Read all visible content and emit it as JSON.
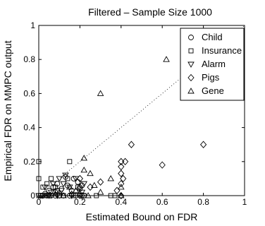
{
  "chart_data": {
    "type": "scatter",
    "title": "Filtered – Sample Size 1000",
    "xlabel": "Estimated Bound on FDR",
    "ylabel": "Empirical FDR on MMPC output",
    "xlim": [
      0,
      1
    ],
    "ylim": [
      0,
      1
    ],
    "xticks": [
      "0",
      "0.2",
      "0.4",
      "0.6",
      "0.8",
      "1"
    ],
    "yticks": [
      "0",
      "0.2",
      "0.4",
      "0.6",
      "0.8",
      "1"
    ],
    "grid": false,
    "legend_position": "top-right",
    "reference_line": {
      "style": "dotted",
      "x": [
        0,
        1
      ],
      "y": [
        0,
        1
      ]
    },
    "series": [
      {
        "name": "Child",
        "marker": "circle",
        "points": [
          [
            0.01,
            0.0
          ],
          [
            0.02,
            0.0
          ],
          [
            0.04,
            0.0
          ],
          [
            0.06,
            0.0
          ],
          [
            0.08,
            0.0
          ],
          [
            0.1,
            0.0
          ],
          [
            0.12,
            0.0
          ],
          [
            0.15,
            0.0
          ],
          [
            0.18,
            0.0
          ],
          [
            0.2,
            0.0
          ],
          [
            0.22,
            0.0
          ],
          [
            0.03,
            0.01
          ],
          [
            0.05,
            0.03
          ],
          [
            0.07,
            0.05
          ],
          [
            0.09,
            0.07
          ],
          [
            0.11,
            0.04
          ],
          [
            0.14,
            0.06
          ],
          [
            0.16,
            0.03
          ],
          [
            0.19,
            0.08
          ],
          [
            0.21,
            0.06
          ],
          [
            0.17,
            0.1
          ],
          [
            0.13,
            0.11
          ],
          [
            0.2,
            0.04
          ],
          [
            0.08,
            0.02
          ]
        ]
      },
      {
        "name": "Insurance",
        "marker": "square",
        "points": [
          [
            0.0,
            0.2
          ],
          [
            0.0,
            0.1
          ],
          [
            0.0,
            0.0
          ],
          [
            0.01,
            0.0
          ],
          [
            0.02,
            0.05
          ],
          [
            0.03,
            0.0
          ],
          [
            0.05,
            0.0
          ],
          [
            0.06,
            0.1
          ],
          [
            0.08,
            0.05
          ],
          [
            0.1,
            0.0
          ],
          [
            0.12,
            0.0
          ],
          [
            0.14,
            0.1
          ],
          [
            0.15,
            0.2
          ],
          [
            0.17,
            0.0
          ],
          [
            0.19,
            0.05
          ],
          [
            0.22,
            0.0
          ],
          [
            0.28,
            0.0
          ],
          [
            0.35,
            0.0
          ],
          [
            0.37,
            0.0
          ],
          [
            0.04,
            0.07
          ],
          [
            0.09,
            0.03
          ]
        ]
      },
      {
        "name": "Alarm",
        "marker": "triangle-down",
        "points": [
          [
            0.0,
            0.0
          ],
          [
            0.01,
            0.0
          ],
          [
            0.02,
            0.0
          ],
          [
            0.03,
            0.05
          ],
          [
            0.05,
            0.0
          ],
          [
            0.07,
            0.07
          ],
          [
            0.09,
            0.0
          ],
          [
            0.1,
            0.1
          ],
          [
            0.12,
            0.07
          ],
          [
            0.13,
            0.12
          ],
          [
            0.15,
            0.05
          ],
          [
            0.16,
            0.0
          ],
          [
            0.18,
            0.1
          ],
          [
            0.2,
            0.0
          ],
          [
            0.22,
            0.07
          ],
          [
            0.21,
            0.02
          ],
          [
            0.06,
            0.02
          ],
          [
            0.11,
            0.03
          ]
        ]
      },
      {
        "name": "Pigs",
        "marker": "diamond",
        "points": [
          [
            0.2,
            0.1
          ],
          [
            0.21,
            0.0
          ],
          [
            0.25,
            0.05
          ],
          [
            0.3,
            0.08
          ],
          [
            0.38,
            0.03
          ],
          [
            0.4,
            0.0
          ],
          [
            0.4,
            0.07
          ],
          [
            0.4,
            0.13
          ],
          [
            0.4,
            0.17
          ],
          [
            0.4,
            0.2
          ],
          [
            0.41,
            0.1
          ],
          [
            0.42,
            0.2
          ],
          [
            0.45,
            0.3
          ],
          [
            0.6,
            0.18
          ],
          [
            0.8,
            0.3
          ],
          [
            0.2,
            0.05
          ]
        ]
      },
      {
        "name": "Gene",
        "marker": "triangle-up",
        "points": [
          [
            0.3,
            0.6
          ],
          [
            0.62,
            0.8
          ],
          [
            0.18,
            0.03
          ],
          [
            0.2,
            0.01
          ],
          [
            0.22,
            0.15
          ],
          [
            0.22,
            0.22
          ],
          [
            0.25,
            0.13
          ],
          [
            0.24,
            0.0
          ],
          [
            0.3,
            0.02
          ],
          [
            0.35,
            0.1
          ],
          [
            0.4,
            0.05
          ],
          [
            0.4,
            0.0
          ],
          [
            0.15,
            0.05
          ],
          [
            0.1,
            0.02
          ],
          [
            0.05,
            0.0
          ],
          [
            0.08,
            0.01
          ],
          [
            0.03,
            0.0
          ],
          [
            0.12,
            0.0
          ],
          [
            0.16,
            0.01
          ],
          [
            0.27,
            0.06
          ]
        ]
      }
    ]
  }
}
